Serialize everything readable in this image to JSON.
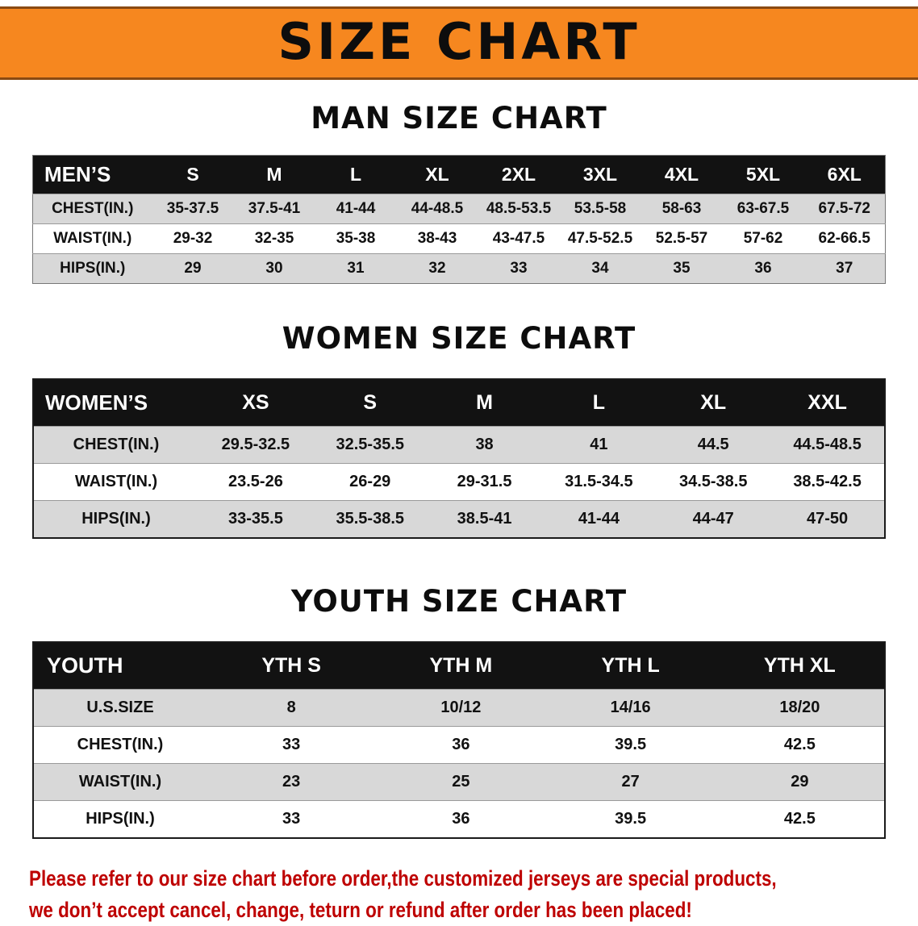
{
  "banner": {
    "title": "SIZE CHART"
  },
  "colors": {
    "banner_bg": "#F6871F",
    "header_bg": "#121212",
    "stripe": "#D8D8D8",
    "footer_text": "#BE0000"
  },
  "sections": [
    {
      "heading": "MAN SIZE CHART",
      "table": {
        "header": [
          "MEN’S",
          "S",
          "M",
          "L",
          "XL",
          "2XL",
          "3XL",
          "4XL",
          "5XL",
          "6XL"
        ],
        "rows": [
          [
            "CHEST(IN.)",
            "35-37.5",
            "37.5-41",
            "41-44",
            "44-48.5",
            "48.5-53.5",
            "53.5-58",
            "58-63",
            "63-67.5",
            "67.5-72"
          ],
          [
            "WAIST(IN.)",
            "29-32",
            "32-35",
            "35-38",
            "38-43",
            "43-47.5",
            "47.5-52.5",
            "52.5-57",
            "57-62",
            "62-66.5"
          ],
          [
            "HIPS(IN.)",
            "29",
            "30",
            "31",
            "32",
            "33",
            "34",
            "35",
            "36",
            "37"
          ]
        ]
      }
    },
    {
      "heading": "WOMEN SIZE CHART",
      "table": {
        "header": [
          "WOMEN’S",
          "XS",
          "S",
          "M",
          "L",
          "XL",
          "XXL"
        ],
        "rows": [
          [
            "CHEST(IN.)",
            "29.5-32.5",
            "32.5-35.5",
            "38",
            "41",
            "44.5",
            "44.5-48.5"
          ],
          [
            "WAIST(IN.)",
            "23.5-26",
            "26-29",
            "29-31.5",
            "31.5-34.5",
            "34.5-38.5",
            "38.5-42.5"
          ],
          [
            "HIPS(IN.)",
            "33-35.5",
            "35.5-38.5",
            "38.5-41",
            "41-44",
            "44-47",
            "47-50"
          ]
        ]
      }
    },
    {
      "heading": "YOUTH SIZE CHART",
      "table": {
        "header": [
          "YOUTH",
          "YTH S",
          "YTH M",
          "YTH L",
          "YTH XL"
        ],
        "rows": [
          [
            "U.S.SIZE",
            "8",
            "10/12",
            "14/16",
            "18/20"
          ],
          [
            "CHEST(IN.)",
            "33",
            "36",
            "39.5",
            "42.5"
          ],
          [
            "WAIST(IN.)",
            "23",
            "25",
            "27",
            "29"
          ],
          [
            "HIPS(IN.)",
            "33",
            "36",
            "39.5",
            "42.5"
          ]
        ]
      }
    }
  ],
  "footer": {
    "line1": "Please refer to our size chart before order,the customized jerseys are special products,",
    "line2": "we don’t accept cancel, change, teturn or refund after order has been placed!"
  }
}
